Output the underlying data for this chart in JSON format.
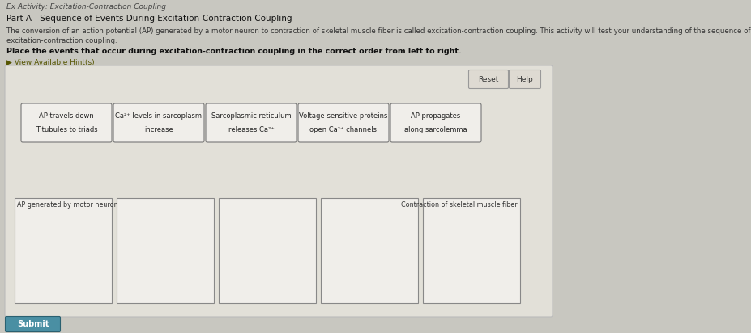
{
  "title_activity": "Ex Activity: Excitation-Contraction Coupling",
  "title_part": "Part A - Sequence of Events During Excitation-Contraction Coupling",
  "description_line1": "The conversion of an action potential (AP) generated by a motor neuron to contraction of skeletal muscle fiber is called excitation-contraction coupling. This activity will test your understanding of the sequence of events that occur during",
  "description_line2": "excitation-contraction coupling.",
  "instruction": "Place the events that occur during excitation-contraction coupling in the correct order from left to right.",
  "hint_link": "▶ View Available Hint(s)",
  "bg_color": "#c8c7c0",
  "panel_bg": "#e2e0d8",
  "card_bg": "#f0eeea",
  "card_border": "#777777",
  "drop_bg": "#f0eeea",
  "drop_border": "#888888",
  "button_bg": "#dedad2",
  "button_border": "#999999",
  "submit_bg": "#4a8fa3",
  "submit_border": "#2a6070",
  "draggable_cards": [
    {
      "lines": [
        "AP travels down",
        "T tubules to triads"
      ]
    },
    {
      "lines": [
        "Ca²⁺ levels in sarcoplasm",
        "increase"
      ]
    },
    {
      "lines": [
        "Sarcoplasmic reticulum",
        "releases Ca²⁺"
      ]
    },
    {
      "lines": [
        "Voltage-sensitive proteins",
        "open Ca²⁺ channels"
      ]
    },
    {
      "lines": [
        "AP propagates",
        "along sarcolemma"
      ]
    }
  ],
  "drop_zones": 5,
  "drop_zone_first_label": "AP generated by motor neuron",
  "drop_zone_last_label": "Contraction of skeletal muscle fiber"
}
